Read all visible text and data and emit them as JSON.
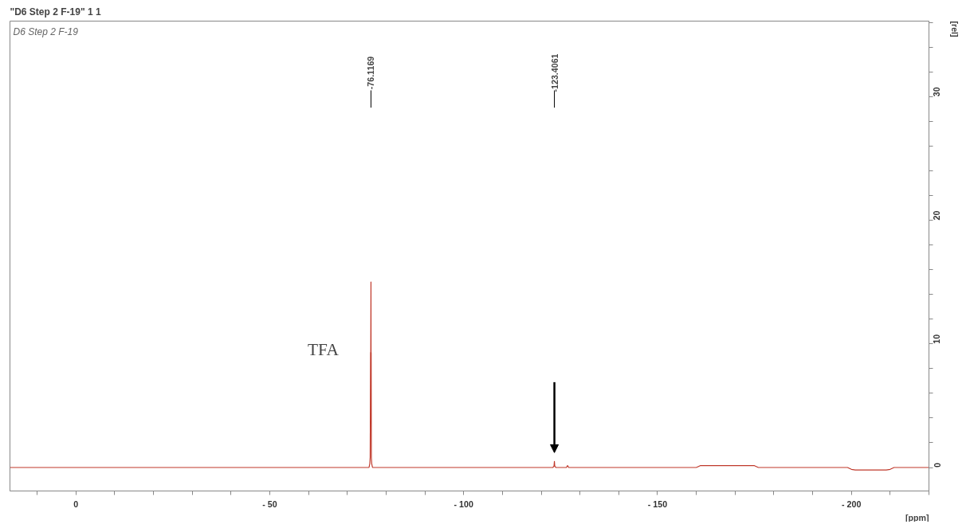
{
  "chart_data": {
    "type": "line",
    "title": "\"D6 Step 2 F-19\"  1  1",
    "subtitle": "D6 Step 2 F-19",
    "xlabel": "[ppm]",
    "ylabel": "[rel]",
    "x": [
      17,
      -60,
      -75.6,
      -75.8,
      -75.9,
      -76.0,
      -76.05,
      -76.1,
      -76.12,
      -76.15,
      -76.2,
      -76.3,
      -76.5,
      -100,
      -123.0,
      -123.3,
      -123.4061,
      -123.5,
      -123.8,
      -126.5,
      -126.8,
      -127.1,
      -160,
      -161,
      -162,
      -174,
      -175,
      -176,
      -199,
      -200,
      -201,
      -209,
      -210,
      -211,
      -220
    ],
    "series": [
      {
        "color": "#c0392b",
        "values": [
          0,
          0,
          0,
          0.3,
          0.8,
          9.3,
          9.3,
          15.0,
          9.3,
          9.3,
          0.8,
          0.3,
          0,
          0,
          0,
          0.1,
          0.5,
          0.1,
          0,
          0,
          0.15,
          0,
          0,
          0.15,
          0.15,
          0.15,
          0.15,
          0,
          0,
          -0.15,
          -0.2,
          -0.2,
          -0.15,
          0,
          0
        ]
      }
    ],
    "xlim": [
      17,
      -220
    ],
    "ylim": [
      -1.9,
      36.1
    ],
    "xticks": [
      {
        "value": 10,
        "label": null
      },
      0,
      {
        "value": -10,
        "label": null
      },
      {
        "value": -20,
        "label": null
      },
      {
        "value": -30,
        "label": null
      },
      {
        "value": -40,
        "label": null
      },
      {
        "value": -50,
        "label": "- 50"
      },
      {
        "value": -60,
        "label": null
      },
      {
        "value": -70,
        "label": null
      },
      {
        "value": -80,
        "label": null
      },
      {
        "value": -90,
        "label": null
      },
      {
        "value": -100,
        "label": "- 100"
      },
      {
        "value": -110,
        "label": null
      },
      {
        "value": -120,
        "label": null
      },
      {
        "value": -130,
        "label": null
      },
      {
        "value": -140,
        "label": null
      },
      {
        "value": -150,
        "label": "- 150"
      },
      {
        "value": -160,
        "label": null
      },
      {
        "value": -170,
        "label": null
      },
      {
        "value": -180,
        "label": null
      },
      {
        "value": -190,
        "label": null
      },
      {
        "value": -200,
        "label": "- 200"
      },
      {
        "value": -210,
        "label": null
      },
      {
        "value": -220,
        "label": null
      }
    ],
    "yticks": [
      0,
      {
        "value": 2,
        "label": null
      },
      {
        "value": 4,
        "label": null
      },
      {
        "value": 6,
        "label": null
      },
      {
        "value": 8,
        "label": null
      },
      10,
      {
        "value": 12,
        "label": null
      },
      {
        "value": 14,
        "label": null
      },
      {
        "value": 16,
        "label": null
      },
      {
        "value": 18,
        "label": null
      },
      20,
      {
        "value": 22,
        "label": null
      },
      {
        "value": 24,
        "label": null
      },
      {
        "value": 26,
        "label": null
      },
      {
        "value": 28,
        "label": null
      },
      30,
      {
        "value": 32,
        "label": null
      },
      {
        "value": 34,
        "label": null
      },
      {
        "value": 36,
        "label": null
      }
    ],
    "annotations": [
      "-76.1169",
      "-123.4061",
      "TFA"
    ],
    "grid": false
  }
}
